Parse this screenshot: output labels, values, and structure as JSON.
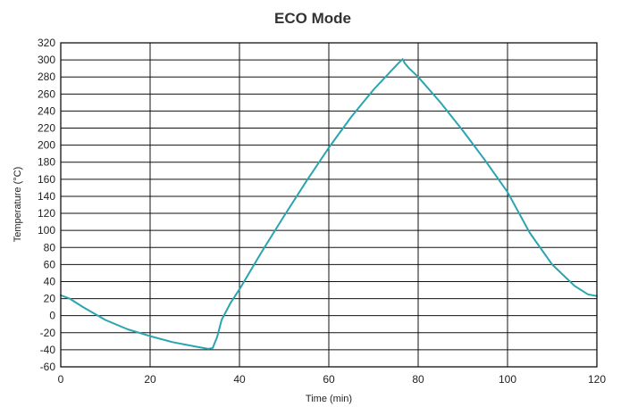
{
  "chart_data": {
    "type": "line",
    "title": "ECO Mode",
    "xlabel": "Time (min)",
    "ylabel": "Temperature (°C)",
    "xlim": [
      0,
      120
    ],
    "ylim": [
      -60,
      320
    ],
    "x_ticks": [
      0,
      20,
      40,
      60,
      80,
      100,
      120
    ],
    "y_ticks": [
      -60,
      -40,
      -20,
      0,
      20,
      40,
      60,
      80,
      100,
      120,
      140,
      160,
      180,
      200,
      220,
      240,
      260,
      280,
      300,
      320
    ],
    "grid": true,
    "colors": {
      "series": "#2aa5b0",
      "grid": "#111111",
      "text": "#222222",
      "title": "#333333"
    },
    "series": [
      {
        "x": [
          0,
          2,
          5,
          10,
          15,
          20,
          25,
          30,
          33,
          34,
          35,
          36,
          38,
          40,
          45,
          50,
          55,
          60,
          65,
          70,
          75,
          76.5,
          77,
          78,
          80,
          85,
          90,
          95,
          100,
          105,
          110,
          115,
          118,
          120
        ],
        "y": [
          24,
          20,
          10,
          -5,
          -16,
          -24,
          -31,
          -36,
          -39,
          -38,
          -25,
          -5,
          15,
          31,
          75,
          117,
          158,
          197,
          233,
          265,
          293,
          301,
          296,
          290,
          280,
          250,
          217,
          182,
          145,
          97,
          60,
          35,
          25,
          23
        ]
      }
    ]
  }
}
